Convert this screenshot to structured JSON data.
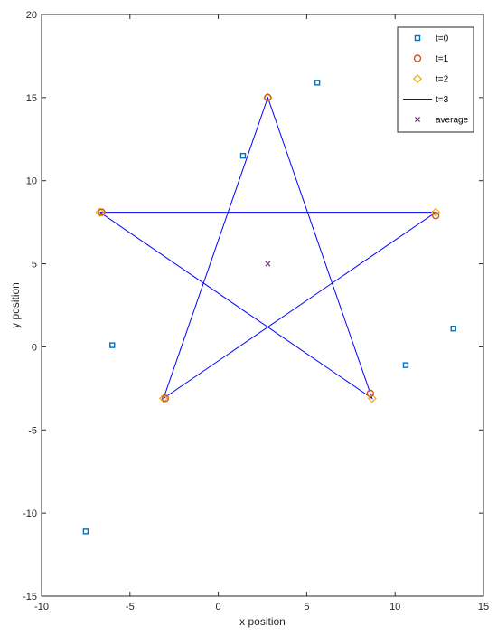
{
  "chart_data": {
    "type": "scatter",
    "xlabel": "x position",
    "ylabel": "y position",
    "xlim": [
      -10,
      15
    ],
    "ylim": [
      -15,
      20
    ],
    "xticks": [
      -10,
      -5,
      0,
      5,
      10,
      15
    ],
    "yticks": [
      -15,
      -10,
      -5,
      0,
      5,
      10,
      15,
      20
    ],
    "xtick_labels": [
      "-10",
      "-5",
      "0",
      "5",
      "10",
      "15"
    ],
    "ytick_labels": [
      "-15",
      "-10",
      "-5",
      "0",
      "5",
      "10",
      "15",
      "20"
    ],
    "grid": false,
    "legend_position": "top-right",
    "series": [
      {
        "name": "t=0",
        "marker": "square",
        "color": "#0072BD",
        "x": [
          5.6,
          1.4,
          -6.0,
          -7.5,
          10.6,
          13.3
        ],
        "y": [
          15.9,
          11.5,
          0.1,
          -11.1,
          -1.1,
          1.1
        ]
      },
      {
        "name": "t=1",
        "marker": "circle",
        "color": "#D95319",
        "x": [
          2.8,
          -6.6,
          -3.0,
          8.6,
          12.3
        ],
        "y": [
          15.0,
          8.1,
          -3.1,
          -2.8,
          7.9
        ]
      },
      {
        "name": "t=2",
        "marker": "diamond",
        "color": "#EDB120",
        "x": [
          2.8,
          -6.7,
          -3.1,
          8.7,
          12.3
        ],
        "y": [
          15.0,
          8.1,
          -3.1,
          -3.1,
          8.1
        ]
      },
      {
        "name": "t=3",
        "marker": "line",
        "color": "#0000FF",
        "x": [
          -6.7,
          12.3,
          -3.1,
          2.8,
          8.7,
          -6.7
        ],
        "y": [
          8.1,
          8.1,
          -3.1,
          15.0,
          -3.1,
          8.1
        ]
      },
      {
        "name": "average",
        "marker": "x",
        "color": "#7E2F8E",
        "x": [
          2.8
        ],
        "y": [
          5.0
        ]
      }
    ]
  }
}
